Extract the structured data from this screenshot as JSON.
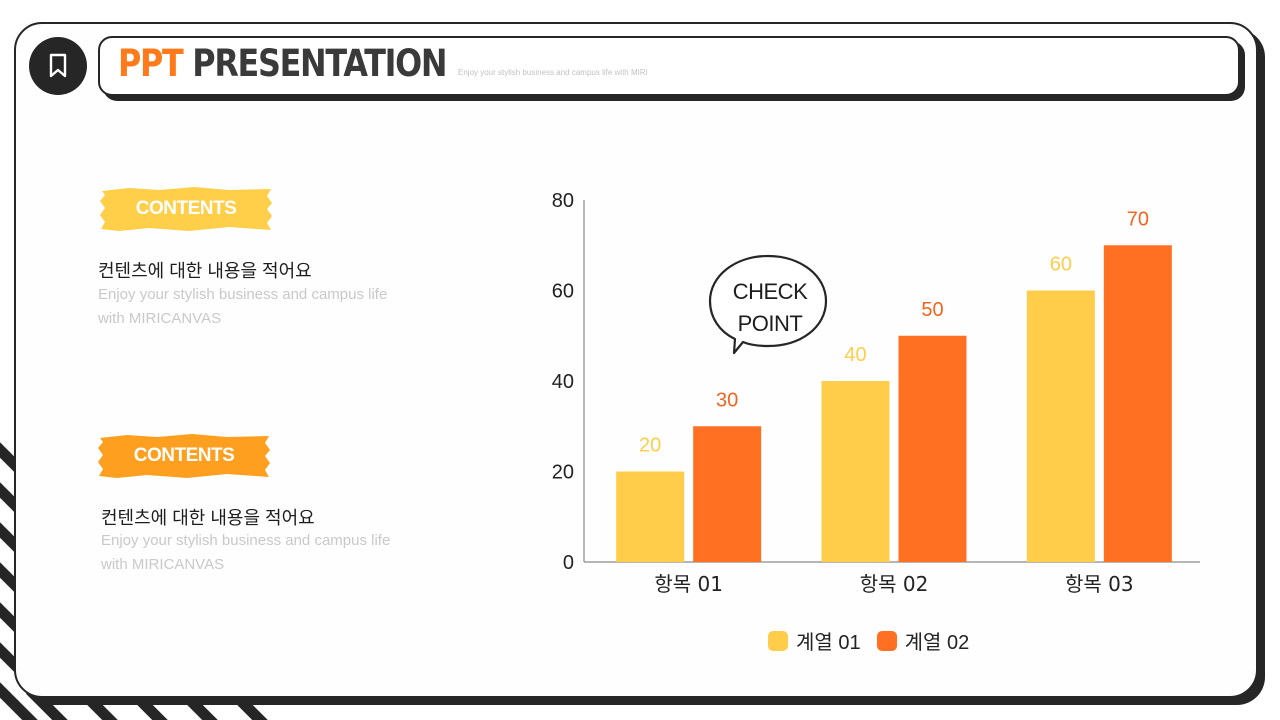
{
  "header": {
    "title_accent": "PPT",
    "title_main": "PRESENTATION",
    "subtitle": "Enjoy your stylish business and campus life with MIRI"
  },
  "icons": {
    "badge": "bookmark-icon"
  },
  "blocks": [
    {
      "tag": "CONTENTS",
      "tag_color": "#ffcf4a",
      "title": "컨텐츠에 대한 내용을 적어요",
      "body_line1": "Enjoy your stylish business and campus life",
      "body_line2": "with MIRICANVAS"
    },
    {
      "tag": "CONTENTS",
      "tag_color": "#ff9f1f",
      "title": "컨텐츠에 대한 내용을 적어요",
      "body_line1": "Enjoy your stylish business and campus life",
      "body_line2": "with MIRICANVAS"
    }
  ],
  "callout": {
    "line1": "CHECK",
    "line2": "POINT"
  },
  "colors": {
    "series1": "#ffcd4a",
    "series2": "#ff7022",
    "label1": "#ffcd4a",
    "label2": "#f0651f",
    "dark": "#262626"
  },
  "chart_data": {
    "type": "bar",
    "categories": [
      "항목 01",
      "항목 02",
      "항목 03"
    ],
    "series": [
      {
        "name": "계열 01",
        "values": [
          20,
          40,
          60
        ]
      },
      {
        "name": "계열 02",
        "values": [
          30,
          50,
          70
        ]
      }
    ],
    "ylim": [
      0,
      80
    ],
    "yticks": [
      0,
      20,
      40,
      60,
      80
    ],
    "grid": false,
    "legend": "bottom"
  }
}
